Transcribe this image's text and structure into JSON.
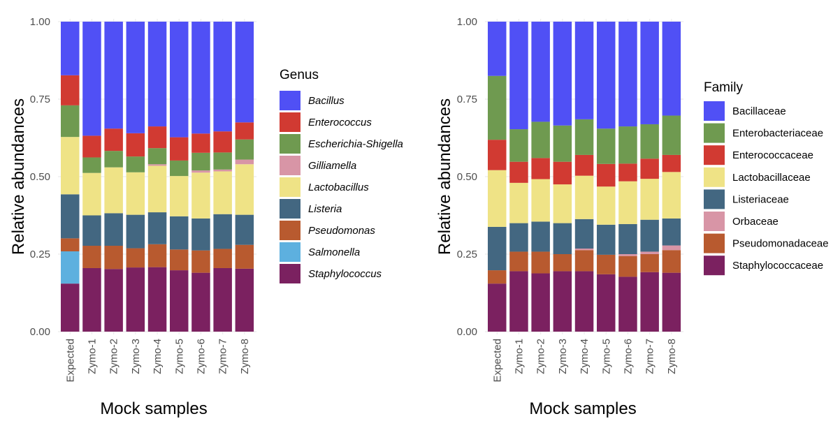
{
  "chart_data": [
    {
      "type": "bar",
      "stacked": true,
      "xlabel": "Mock samples",
      "ylabel": "Relative abundances",
      "ylim": [
        0,
        1
      ],
      "yticks": [
        "0.00",
        "0.25",
        "0.50",
        "0.75",
        "1.00"
      ],
      "categories": [
        "Expected",
        "Zymo-1",
        "Zymo-2",
        "Zymo-3",
        "Zymo-4",
        "Zymo-5",
        "Zymo-6",
        "Zymo-7",
        "Zymo-8"
      ],
      "legend_title": "Genus",
      "legend_position": "right",
      "legend_italic": true,
      "legend": [
        "Bacillus",
        "Enterococcus",
        "Escherichia-Shigella",
        "Gilliamella",
        "Lactobacillus",
        "Listeria",
        "Pseudomonas",
        "Salmonella",
        "Staphylococcus"
      ],
      "colors": [
        "#5050f5",
        "#d13a32",
        "#6f9a50",
        "#d895a6",
        "#efe386",
        "#436781",
        "#b85a2f",
        "#5db0df",
        "#7b2160"
      ],
      "stack_order": [
        "Staphylococcus",
        "Salmonella",
        "Pseudomonas",
        "Listeria",
        "Lactobacillus",
        "Gilliamella",
        "Escherichia-Shigella",
        "Enterococcus",
        "Bacillus"
      ],
      "series": [
        {
          "name": "Staphylococcus",
          "values": [
            0.155,
            0.205,
            0.202,
            0.207,
            0.208,
            0.198,
            0.19,
            0.205,
            0.203
          ]
        },
        {
          "name": "Salmonella",
          "values": [
            0.104,
            0,
            0,
            0,
            0,
            0,
            0,
            0,
            0
          ]
        },
        {
          "name": "Pseudomonas",
          "values": [
            0.042,
            0.072,
            0.075,
            0.062,
            0.074,
            0.067,
            0.072,
            0.062,
            0.077
          ]
        },
        {
          "name": "Listeria",
          "values": [
            0.142,
            0.098,
            0.105,
            0.108,
            0.103,
            0.107,
            0.103,
            0.112,
            0.097
          ]
        },
        {
          "name": "Lactobacillus",
          "values": [
            0.185,
            0.137,
            0.148,
            0.137,
            0.15,
            0.13,
            0.148,
            0.138,
            0.163
          ]
        },
        {
          "name": "Gilliamella",
          "values": [
            0,
            0,
            0,
            0,
            0.005,
            0,
            0.007,
            0.006,
            0.015
          ]
        },
        {
          "name": "Escherichia-Shigella",
          "values": [
            0.102,
            0.05,
            0.053,
            0.051,
            0.052,
            0.05,
            0.057,
            0.055,
            0.065
          ]
        },
        {
          "name": "Enterococcus",
          "values": [
            0.097,
            0.07,
            0.072,
            0.075,
            0.07,
            0.075,
            0.062,
            0.068,
            0.055
          ]
        },
        {
          "name": "Bacillus",
          "values": [
            0.173,
            0.368,
            0.345,
            0.36,
            0.338,
            0.373,
            0.361,
            0.354,
            0.325
          ]
        }
      ]
    },
    {
      "type": "bar",
      "stacked": true,
      "xlabel": "Mock samples",
      "ylabel": "Relative abundances",
      "ylim": [
        0,
        1
      ],
      "yticks": [
        "0.00",
        "0.25",
        "0.50",
        "0.75",
        "1.00"
      ],
      "categories": [
        "Expected",
        "Zymo-1",
        "Zymo-2",
        "Zymo-3",
        "Zymo-4",
        "Zymo-5",
        "Zymo-6",
        "Zymo-7",
        "Zymo-8"
      ],
      "legend_title": "Family",
      "legend_position": "right",
      "legend_italic": false,
      "legend": [
        "Bacillaceae",
        "Enterobacteriaceae",
        "Enterococcaceae",
        "Lactobacillaceae",
        "Listeriaceae",
        "Orbaceae",
        "Pseudomonadaceae",
        "Staphylococcaceae"
      ],
      "colors": [
        "#5050f5",
        "#6f9a50",
        "#d13a32",
        "#efe386",
        "#436781",
        "#d895a6",
        "#b85a2f",
        "#7b2160"
      ],
      "stack_order": [
        "Staphylococcaceae",
        "Pseudomonadaceae",
        "Orbaceae",
        "Listeriaceae",
        "Lactobacillaceae",
        "Enterococcaceae",
        "Enterobacteriaceae",
        "Bacillaceae"
      ],
      "series": [
        {
          "name": "Staphylococcaceae",
          "values": [
            0.155,
            0.195,
            0.188,
            0.195,
            0.195,
            0.185,
            0.177,
            0.192,
            0.19
          ]
        },
        {
          "name": "Pseudomonadaceae",
          "values": [
            0.043,
            0.063,
            0.07,
            0.055,
            0.068,
            0.063,
            0.067,
            0.058,
            0.073
          ]
        },
        {
          "name": "Orbaceae",
          "values": [
            0,
            0,
            0,
            0,
            0.005,
            0,
            0.006,
            0.008,
            0.015
          ]
        },
        {
          "name": "Listeriaceae",
          "values": [
            0.14,
            0.092,
            0.097,
            0.1,
            0.095,
            0.097,
            0.097,
            0.103,
            0.087
          ]
        },
        {
          "name": "Lactobacillaceae",
          "values": [
            0.183,
            0.13,
            0.137,
            0.125,
            0.14,
            0.123,
            0.138,
            0.132,
            0.15
          ]
        },
        {
          "name": "Enterococcaceae",
          "values": [
            0.098,
            0.068,
            0.068,
            0.073,
            0.067,
            0.073,
            0.057,
            0.065,
            0.055
          ]
        },
        {
          "name": "Enterobacteriaceae",
          "values": [
            0.206,
            0.105,
            0.117,
            0.117,
            0.115,
            0.114,
            0.12,
            0.111,
            0.127
          ]
        },
        {
          "name": "Bacillaceae",
          "values": [
            0.175,
            0.347,
            0.323,
            0.335,
            0.315,
            0.345,
            0.338,
            0.331,
            0.303
          ]
        }
      ]
    }
  ]
}
